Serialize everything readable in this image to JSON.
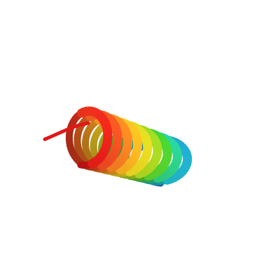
{
  "viewer": {
    "background": "#ffffff",
    "render_style": "cartoon",
    "color_scheme": "rainbow-by-residue",
    "colors": {
      "n_terminus": "#1f78c8",
      "teal": "#1fc8c0",
      "green": "#3cc830",
      "yellow_green": "#a8d020",
      "yellow": "#f0d020",
      "orange": "#f09020",
      "red_orange": "#e85020",
      "c_terminus": "#e01818"
    }
  },
  "structure": {
    "type": "alpha-helix",
    "turns": 9
  }
}
